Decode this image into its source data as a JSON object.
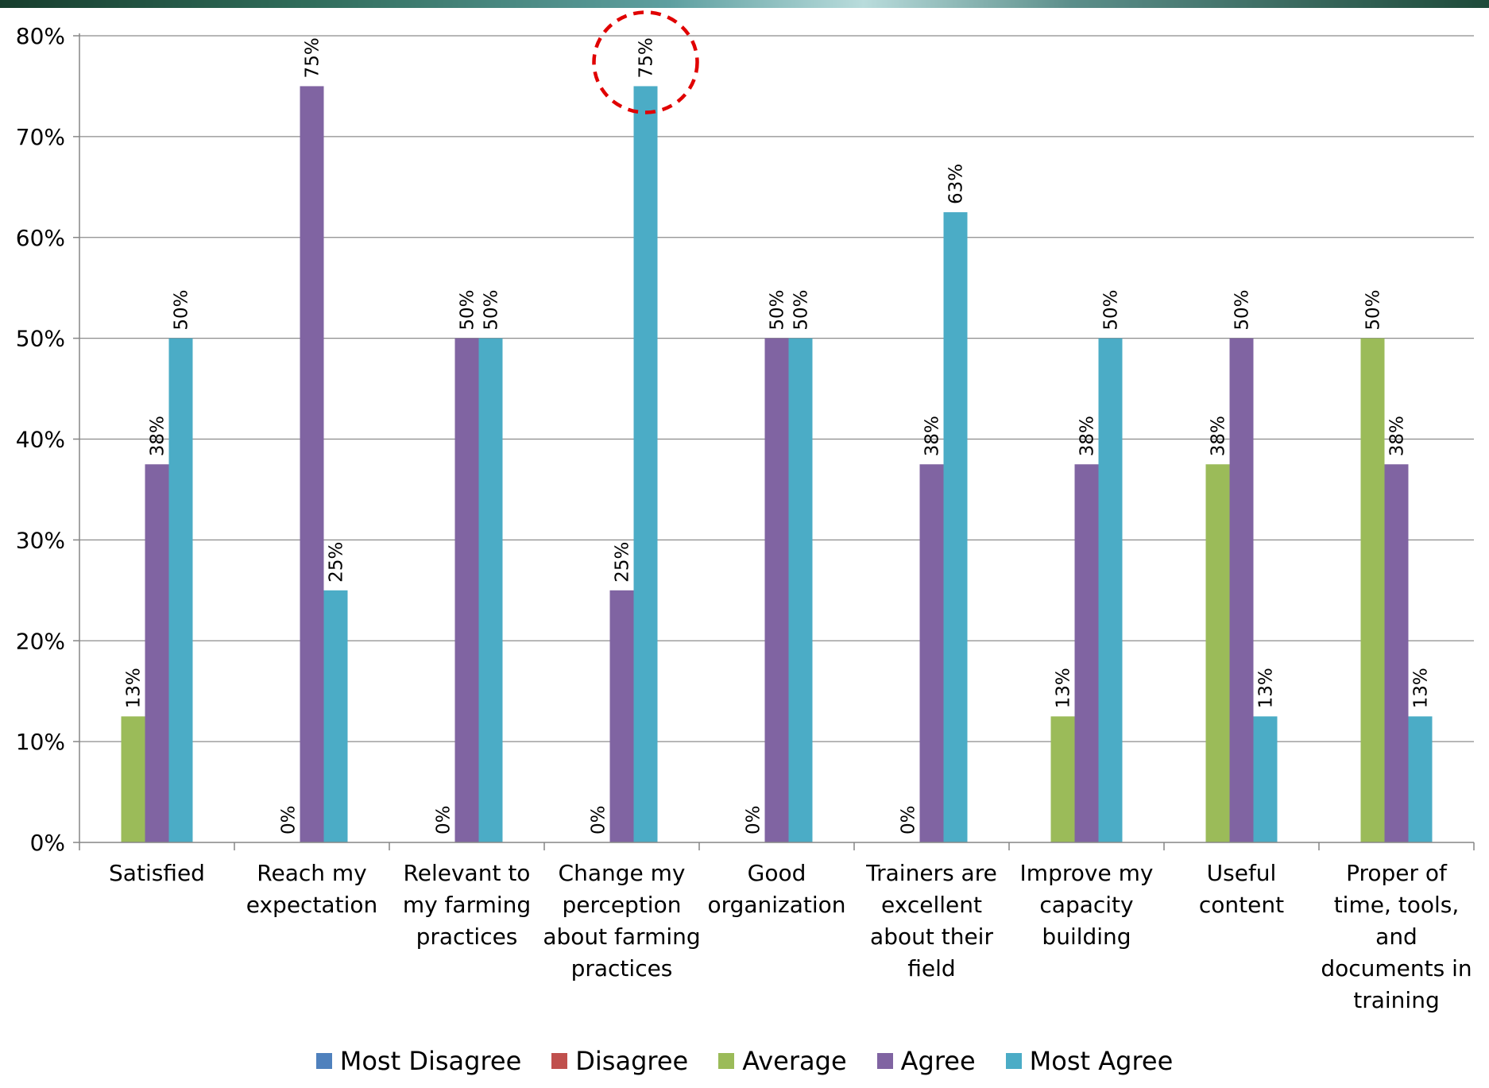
{
  "chart_data": {
    "type": "bar",
    "categories": [
      "Satisfied",
      "Reach my expectation",
      "Relevant to my farming practices",
      "Change my perception about farming practices",
      "Good organization",
      "Trainers are excellent about their field",
      "Improve my capacity building",
      "Useful content",
      "Proper of time, tools, and documents in training"
    ],
    "category_lines": [
      [
        "Satisfied"
      ],
      [
        "Reach my",
        "expectation"
      ],
      [
        "Relevant to",
        "my farming",
        "practices"
      ],
      [
        "Change my",
        "perception",
        "about farming",
        "practices"
      ],
      [
        "Good",
        "organization"
      ],
      [
        "Trainers are",
        "excellent",
        "about their",
        "field"
      ],
      [
        "Improve my",
        "capacity",
        "building"
      ],
      [
        "Useful",
        "content"
      ],
      [
        "Proper of",
        "time, tools,",
        "and",
        "documents in",
        "training"
      ]
    ],
    "series": [
      {
        "name": "Most Disagree",
        "color": "#4f81bd",
        "values": [
          null,
          null,
          null,
          null,
          null,
          null,
          null,
          null,
          null
        ],
        "labels": [
          null,
          null,
          null,
          null,
          null,
          null,
          null,
          null,
          null
        ]
      },
      {
        "name": "Disagree",
        "color": "#c0504d",
        "values": [
          null,
          null,
          null,
          null,
          null,
          null,
          null,
          null,
          null
        ],
        "labels": [
          null,
          null,
          null,
          null,
          null,
          null,
          null,
          null,
          null
        ]
      },
      {
        "name": "Average",
        "color": "#9bbb59",
        "values": [
          12.5,
          0,
          0,
          0,
          0,
          0,
          12.5,
          37.5,
          50
        ],
        "labels": [
          "13%",
          "0%",
          "0%",
          "0%",
          "0%",
          "0%",
          "13%",
          "38%",
          "50%"
        ]
      },
      {
        "name": "Agree",
        "color": "#8064a2",
        "values": [
          37.5,
          75,
          50,
          25,
          50,
          37.5,
          37.5,
          50,
          37.5
        ],
        "labels": [
          "38%",
          "75%",
          "50%",
          "25%",
          "50%",
          "38%",
          "38%",
          "50%",
          "38%"
        ]
      },
      {
        "name": "Most Agree",
        "color": "#4bacc6",
        "values": [
          50,
          25,
          50,
          75,
          50,
          62.5,
          50,
          12.5,
          12.5
        ],
        "labels": [
          "50%",
          "25%",
          "50%",
          "75%",
          "50%",
          "63%",
          "50%",
          "13%",
          "13%"
        ]
      }
    ],
    "yticks": [
      "0%",
      "10%",
      "20%",
      "30%",
      "40%",
      "50%",
      "60%",
      "70%",
      "80%"
    ],
    "ylim": [
      0,
      80
    ],
    "grid": true,
    "legend_position": "bottom",
    "annotation": {
      "type": "dashed-circle",
      "color": "#e00000",
      "category_index": 3,
      "series": "Most Agree"
    }
  }
}
